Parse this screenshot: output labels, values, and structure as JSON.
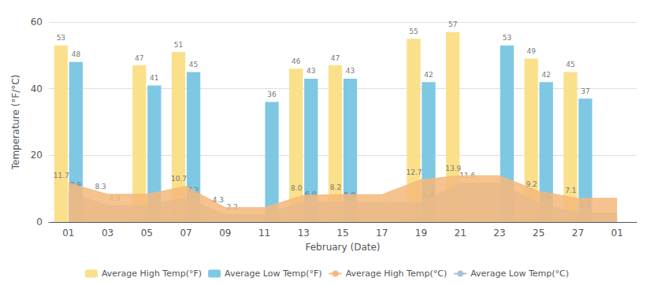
{
  "chart_data": {
    "type": "bar",
    "categories": [
      "01",
      "03",
      "05",
      "07",
      "09",
      "11",
      "13",
      "15",
      "17",
      "19",
      "21",
      "23",
      "25",
      "27",
      "01"
    ],
    "xlabel": "February (Date)",
    "ylabel": "Temperature (°F/°C)",
    "ylim": [
      0,
      60
    ],
    "yticks": [
      0,
      20,
      40,
      60
    ],
    "grid": true,
    "legend": "bottom",
    "series": [
      {
        "name": "Average High Temp(°F)",
        "type": "bar",
        "color": "#FAE08A",
        "data_labels": true,
        "values": [
          53,
          null,
          47,
          51,
          null,
          null,
          46,
          47,
          null,
          55,
          57,
          null,
          49,
          45,
          null
        ]
      },
      {
        "name": "Average Low Temp(°F)",
        "type": "bar",
        "color": "#7EC8E3",
        "data_labels": true,
        "values": [
          48,
          null,
          41,
          45,
          null,
          36,
          43,
          43,
          null,
          42,
          null,
          53,
          42,
          37,
          null
        ]
      },
      {
        "name": "Average High Temp(°C)",
        "type": "area",
        "color": "#F5B87A",
        "data_labels": true,
        "values": [
          11.7,
          8.3,
          8.3,
          10.7,
          4.3,
          4.3,
          8.0,
          8.2,
          8.2,
          12.7,
          13.9,
          13.9,
          9.2,
          7.1,
          7.1
        ],
        "value_labels": [
          "11.7",
          "8.3",
          null,
          "10.7",
          "4.3",
          null,
          "8.0",
          "8.2",
          null,
          "12.7",
          "13.9",
          null,
          "9.2",
          "7.1",
          null
        ]
      },
      {
        "name": "Average Low Temp(°C)",
        "type": "area",
        "color": "#A8C0DD",
        "data_labels": true,
        "values": [
          8.9,
          4.9,
          4.9,
          7.2,
          2.2,
          2.2,
          6.0,
          5.9,
          5.9,
          5.8,
          11.6,
          11.6,
          5.6,
          2.7,
          2.7
        ],
        "value_labels": [
          "8.9",
          "4.9",
          null,
          "7.2",
          "2.2",
          null,
          "6.0",
          "5.9",
          null,
          "5.8",
          "11.6",
          null,
          "5.6",
          "2.7",
          null
        ]
      }
    ]
  }
}
